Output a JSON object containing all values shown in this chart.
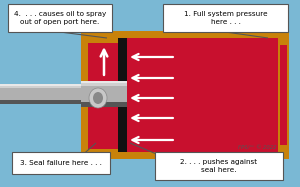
{
  "bg_color": "#7ab8d4",
  "red": "#c8102e",
  "orange": "#c8820a",
  "black": "#1a1a1a",
  "white": "#ffffff",
  "rod_light": "#d0d0d0",
  "rod_mid": "#b0b0b0",
  "rod_dark": "#808080",
  "rod_darker": "#555555",
  "callout_bg": "#ffffff",
  "callout_border": "#555555",
  "label1": "1. Full system pressure\nhere . . .",
  "label2": "2. . . . pushes against\nseal here.",
  "label3": "3. Seal failure here . . .",
  "label4": "4.  . . . causes oil to spray\nout of open port here.",
  "watermark": "FPS/™ © 2022",
  "fig_width": 3.0,
  "fig_height": 1.87,
  "dpi": 100
}
